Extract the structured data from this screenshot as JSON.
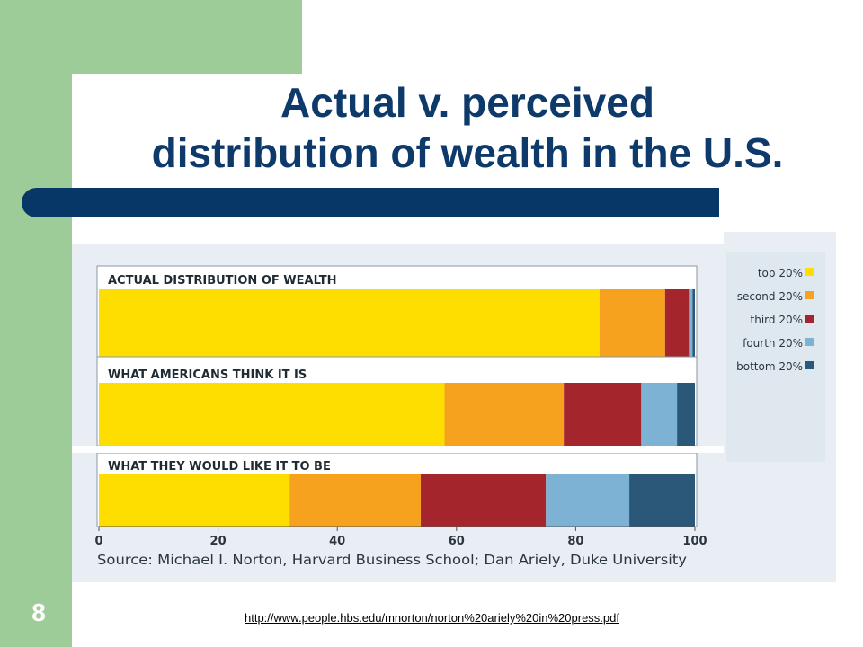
{
  "slide": {
    "title_line1": "Actual v. perceived",
    "title_line2": "distribution of wealth in the U.S.",
    "number": "8",
    "link": "http://www.people.hbs.edu/mnorton/norton%20ariely%20in%20press.pdf"
  },
  "colors": {
    "background": "#ffffff",
    "green": "#9dcc98",
    "title": "#0e3a6b",
    "title_bar": "#073767",
    "chart_panel": "#e8eef3",
    "legend_panel": "#dfe8ee"
  },
  "chart_data": {
    "type": "bar",
    "orientation": "horizontal",
    "stacked": true,
    "categories": [
      "ACTUAL DISTRIBUTION OF WEALTH",
      "WHAT AMERICANS THINK IT IS",
      "WHAT THEY WOULD LIKE IT TO BE"
    ],
    "series": [
      {
        "name": "top 20%",
        "color": "#fedd00",
        "values": [
          84,
          58,
          32
        ]
      },
      {
        "name": "second 20%",
        "color": "#f6a21e",
        "values": [
          11,
          20,
          22
        ]
      },
      {
        "name": "third 20%",
        "color": "#a5252c",
        "values": [
          4,
          13,
          21
        ]
      },
      {
        "name": "fourth 20%",
        "color": "#7db2d4",
        "values": [
          0.6,
          6,
          14
        ]
      },
      {
        "name": "bottom 20%",
        "color": "#2b5878",
        "values": [
          0.4,
          3,
          11
        ]
      }
    ],
    "xlim": [
      0,
      100
    ],
    "x_ticks": [
      "0",
      "20",
      "40",
      "60",
      "80",
      "100"
    ],
    "source": "Source: Michael I. Norton, Harvard Business School; Dan Ariely, Duke University",
    "legend_position": "right"
  }
}
